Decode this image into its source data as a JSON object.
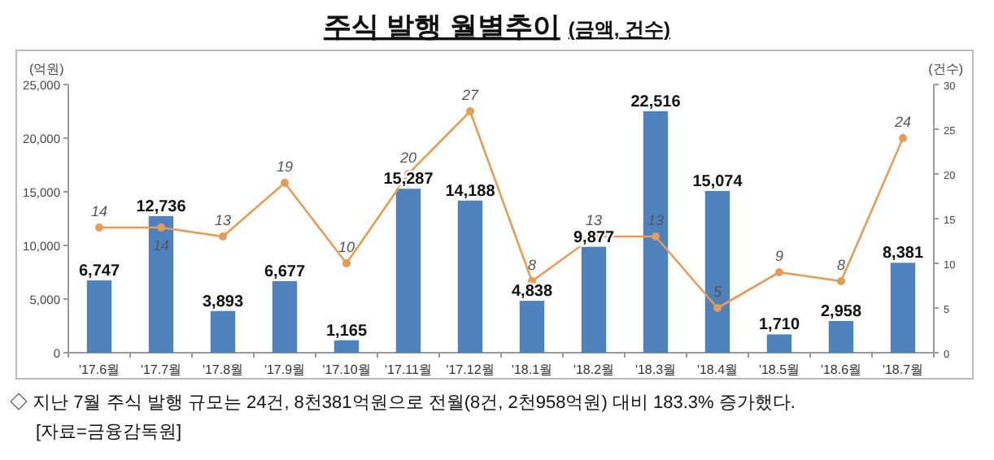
{
  "chart_data": {
    "type": "bar",
    "title": "주식 발행 월별추이",
    "subtitle": "(금액, 건수)",
    "ylabel": "(억원)",
    "y2label": "(건수)",
    "categories": [
      "'17.6월",
      "'17.7월",
      "'17.8월",
      "'17.9월",
      "'17.10월",
      "'17.11월",
      "'17.12월",
      "'18.1월",
      "'18.2월",
      "'18.3월",
      "'18.4월",
      "'18.5월",
      "'18.6월",
      "'18.7월"
    ],
    "series": [
      {
        "color": "#4f81bd",
        "values": [
          6747,
          12736,
          3893,
          6677,
          1165,
          15287,
          14188,
          4838,
          9877,
          22516,
          15074,
          1710,
          2958,
          8381
        ],
        "value_labels": [
          "6,747",
          "12,736",
          "3,893",
          "6,677",
          "1,165",
          "15,287",
          "14,188",
          "4,838",
          "9,877",
          "22,516",
          "15,074",
          "1,710",
          "2,958",
          "8,381"
        ]
      },
      {
        "type": "line",
        "axis": "y2",
        "color": "#e59c58",
        "marker": "circle",
        "values": [
          14,
          14,
          13,
          19,
          10,
          20,
          27,
          8,
          13,
          13,
          5,
          9,
          8,
          24
        ]
      }
    ],
    "ylim": [
      0,
      25000
    ],
    "yticks": [
      {
        "value": 0,
        "label": "0"
      },
      {
        "value": 5000,
        "label": "5,000"
      },
      {
        "value": 10000,
        "label": "10,000"
      },
      {
        "value": 15000,
        "label": "15,000"
      },
      {
        "value": 20000,
        "label": "20,000"
      },
      {
        "value": 25000,
        "label": "25,000"
      }
    ],
    "y2lim": [
      0,
      30
    ],
    "y2ticks": [
      0,
      5,
      10,
      15,
      20,
      25,
      30
    ],
    "data_labels": true,
    "grid": false,
    "annotations": [
      "◇ 지난 7월 주식 발행 규모는 24건, 8천381억원으로 전월(8건, 2천958억원) 대비 183.3% 증가했다.",
      "[자료=금융감독원]"
    ]
  }
}
